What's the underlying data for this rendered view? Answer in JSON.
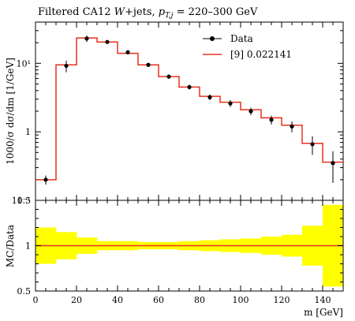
{
  "chart_data": [
    {
      "type": "line",
      "title": "Filtered CA12 W+jets, p_{T,j} = 220–300 GeV",
      "title_parts": {
        "prefix": "Filtered CA12 ",
        "w": "W",
        "mid": "+jets, ",
        "p": "p",
        "sub": "T,j",
        "suffix": " = 220–300 GeV"
      },
      "ylabel": "1000/σ dσ/dm [1/GeV]",
      "xlabel": "m [GeV]",
      "x_range": [
        0,
        150
      ],
      "y_scale": "log",
      "ylim": [
        0.1,
        40
      ],
      "y_ticks": [
        {
          "value": 0.1,
          "label": "10⁻¹"
        },
        {
          "value": 1,
          "label": "1"
        },
        {
          "value": 10,
          "label": "10¹"
        }
      ],
      "legend": {
        "placement": "top-right",
        "entries": [
          {
            "label": "Data",
            "color": "#000000"
          },
          {
            "label": "[9] 0.022141",
            "color": "#e8311e"
          }
        ]
      },
      "data_points": [
        {
          "x": 5,
          "y": 0.2,
          "err": 0.03
        },
        {
          "x": 15,
          "y": 9.2,
          "err": 1.8
        },
        {
          "x": 25,
          "y": 23,
          "err": 2.5
        },
        {
          "x": 35,
          "y": 20.5,
          "err": 1.3
        },
        {
          "x": 45,
          "y": 14.5,
          "err": 1.0
        },
        {
          "x": 55,
          "y": 9.5,
          "err": 0.6
        },
        {
          "x": 65,
          "y": 6.4,
          "err": 0.4
        },
        {
          "x": 75,
          "y": 4.5,
          "err": 0.35
        },
        {
          "x": 85,
          "y": 3.2,
          "err": 0.3
        },
        {
          "x": 95,
          "y": 2.6,
          "err": 0.3
        },
        {
          "x": 105,
          "y": 2.0,
          "err": 0.25
        },
        {
          "x": 115,
          "y": 1.5,
          "err": 0.22
        },
        {
          "x": 125,
          "y": 1.2,
          "err": 0.22
        },
        {
          "x": 135,
          "y": 0.66,
          "err": 0.2
        },
        {
          "x": 145,
          "y": 0.35,
          "err": 0.17
        }
      ],
      "mc_histogram": {
        "bin_edges": [
          0,
          10,
          20,
          30,
          40,
          50,
          60,
          70,
          80,
          90,
          100,
          110,
          120,
          130,
          140,
          150
        ],
        "values": [
          0.2,
          9.5,
          23.5,
          20.5,
          14.0,
          9.5,
          6.4,
          4.5,
          3.3,
          2.7,
          2.1,
          1.6,
          1.25,
          0.68,
          0.36
        ]
      }
    },
    {
      "type": "area",
      "ylabel": "MC/Data",
      "xlabel": "m [GeV]",
      "x_range": [
        0,
        150
      ],
      "ylim": [
        0.5,
        1.5
      ],
      "y_tick_values": [
        0.5,
        1,
        1.5
      ],
      "y_tick_labels": [
        "0.5",
        "1",
        "1.5"
      ],
      "x_tick_values": [
        0,
        20,
        40,
        60,
        80,
        100,
        120,
        140
      ],
      "x_tick_labels": [
        "0",
        "20",
        "40",
        "60",
        "80",
        "100",
        "120",
        "140"
      ],
      "band": {
        "bin_edges": [
          0,
          10,
          20,
          30,
          40,
          50,
          60,
          70,
          80,
          90,
          100,
          110,
          120,
          130,
          140,
          150
        ],
        "low": [
          0.8,
          0.85,
          0.91,
          0.95,
          0.95,
          0.96,
          0.96,
          0.95,
          0.94,
          0.93,
          0.92,
          0.9,
          0.88,
          0.78,
          0.55
        ],
        "high": [
          1.2,
          1.15,
          1.09,
          1.05,
          1.05,
          1.04,
          1.04,
          1.05,
          1.06,
          1.07,
          1.08,
          1.1,
          1.12,
          1.22,
          1.45
        ]
      },
      "ratio_line": 1.0,
      "colors": {
        "band": "#ffff00",
        "line": "#e8311e"
      }
    }
  ]
}
